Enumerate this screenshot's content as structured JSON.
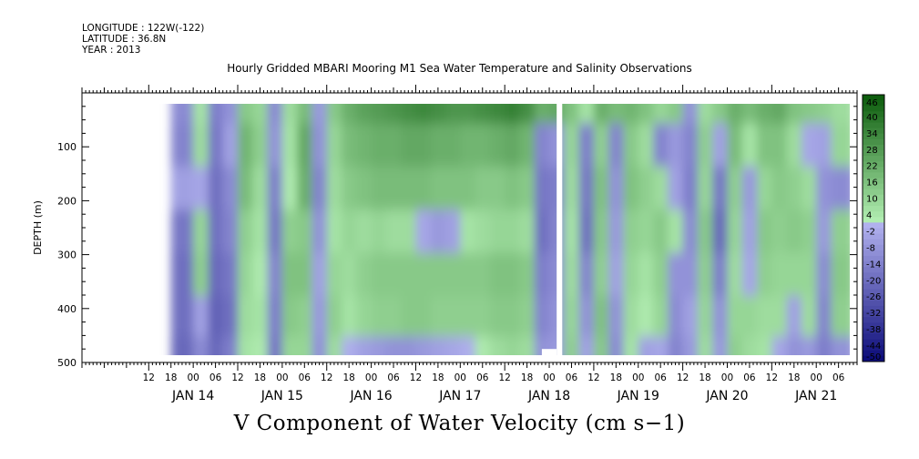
{
  "header": {
    "longitude": "LONGITUDE : 122W(-122)",
    "latitude": "LATITUDE : 36.8N",
    "year": "YEAR : 2013"
  },
  "chart_data": {
    "type": "heatmap",
    "title": "Hourly Gridded MBARI Mooring M1 Sea Water Temperature and Salinity Observations",
    "xlabel": "V Component of Water Velocity (cm s−1)",
    "ylabel": "DEPTH (m)",
    "x_range_hours": [
      0,
      186
    ],
    "x_hour_tick_labels": [
      "12",
      "18",
      "00",
      "06",
      "12",
      "18",
      "00",
      "06",
      "12",
      "18",
      "00",
      "06",
      "12",
      "18",
      "00",
      "06",
      "12",
      "18",
      "00",
      "06",
      "12",
      "18",
      "00",
      "06",
      "12",
      "18",
      "00",
      "06",
      "12",
      "18",
      "00",
      "06"
    ],
    "x_day_labels": [
      "JAN 14",
      "JAN 15",
      "JAN 16",
      "JAN 17",
      "JAN 18",
      "JAN 19",
      "JAN 20",
      "JAN 21"
    ],
    "y_ticks": [
      100,
      200,
      300,
      400,
      500
    ],
    "ylim": [
      500,
      0
    ],
    "colorbar_labels": [
      "46",
      "40",
      "34",
      "28",
      "22",
      "16",
      "10",
      "4",
      "-2",
      "-8",
      "-14",
      "-20",
      "-26",
      "-32",
      "-38",
      "-44",
      "-50"
    ],
    "colorbar_range": [
      -50,
      46
    ],
    "colormap": {
      "negative_strong": "#0a0a78",
      "negative_light": "#b4b4f0",
      "positive_light": "#b4f0b4",
      "positive_strong": "#0a5a0a"
    },
    "data_gaps": [
      {
        "hour_start": 110,
        "hour_end": 111.5,
        "depth_start": 15,
        "depth_end": 500
      },
      {
        "hour_start": 106,
        "hour_end": 110,
        "depth_start": 475,
        "depth_end": 500
      }
    ],
    "columns": [
      {
        "t": 10,
        "v": [
          -12,
          -14,
          -6,
          -18,
          -20,
          -20,
          -22
        ]
      },
      {
        "t": 14,
        "v": [
          4,
          6,
          -4,
          8,
          10,
          -6,
          -12
        ]
      },
      {
        "t": 18,
        "v": [
          -16,
          -18,
          -20,
          -20,
          -22,
          -24,
          -22
        ]
      },
      {
        "t": 22,
        "v": [
          -10,
          -6,
          -12,
          -14,
          -18,
          -20,
          -16
        ]
      },
      {
        "t": 26,
        "v": [
          12,
          18,
          16,
          10,
          8,
          6,
          4
        ]
      },
      {
        "t": 30,
        "v": [
          8,
          10,
          6,
          4,
          2,
          4,
          2
        ]
      },
      {
        "t": 34,
        "v": [
          -12,
          -10,
          -16,
          -18,
          -14,
          -16,
          -18
        ]
      },
      {
        "t": 38,
        "v": [
          6,
          4,
          2,
          10,
          14,
          12,
          8
        ]
      },
      {
        "t": 42,
        "v": [
          16,
          22,
          20,
          12,
          14,
          10,
          8
        ]
      },
      {
        "t": 46,
        "v": [
          -8,
          -10,
          -14,
          -10,
          -6,
          -8,
          -10
        ]
      },
      {
        "t": 50,
        "v": [
          12,
          8,
          6,
          4,
          8,
          10,
          6
        ]
      },
      {
        "t": 54,
        "v": [
          20,
          16,
          12,
          8,
          6,
          4,
          -2
        ]
      },
      {
        "t": 58,
        "v": [
          24,
          18,
          14,
          6,
          10,
          8,
          -6
        ]
      },
      {
        "t": 62,
        "v": [
          26,
          20,
          16,
          8,
          12,
          10,
          -8
        ]
      },
      {
        "t": 66,
        "v": [
          28,
          20,
          16,
          6,
          12,
          10,
          -10
        ]
      },
      {
        "t": 70,
        "v": [
          30,
          22,
          16,
          6,
          12,
          12,
          -10
        ]
      },
      {
        "t": 74,
        "v": [
          32,
          22,
          16,
          -4,
          12,
          12,
          -8
        ]
      },
      {
        "t": 78,
        "v": [
          30,
          20,
          14,
          -8,
          12,
          10,
          -6
        ]
      },
      {
        "t": 82,
        "v": [
          28,
          20,
          14,
          -6,
          12,
          10,
          -4
        ]
      },
      {
        "t": 86,
        "v": [
          28,
          18,
          14,
          4,
          12,
          10,
          -2
        ]
      },
      {
        "t": 90,
        "v": [
          30,
          18,
          12,
          6,
          12,
          10,
          2
        ]
      },
      {
        "t": 94,
        "v": [
          32,
          20,
          12,
          8,
          14,
          12,
          6
        ]
      },
      {
        "t": 98,
        "v": [
          34,
          22,
          14,
          8,
          14,
          12,
          8
        ]
      },
      {
        "t": 102,
        "v": [
          30,
          18,
          12,
          6,
          12,
          10,
          6
        ]
      },
      {
        "t": 106,
        "v": [
          20,
          -14,
          -18,
          -20,
          -16,
          -14,
          -10
        ]
      },
      {
        "t": 110,
        "v": [
          22,
          -10,
          -16,
          -14,
          -12,
          -10,
          -8
        ]
      },
      {
        "t": 114,
        "v": [
          14,
          8,
          6,
          4,
          6,
          8,
          10
        ]
      },
      {
        "t": 118,
        "v": [
          4,
          -16,
          -18,
          -20,
          -14,
          -10,
          -6
        ]
      },
      {
        "t": 122,
        "v": [
          20,
          10,
          14,
          12,
          10,
          14,
          12
        ]
      },
      {
        "t": 126,
        "v": [
          16,
          -14,
          -10,
          -8,
          -6,
          -10,
          -12
        ]
      },
      {
        "t": 130,
        "v": [
          18,
          12,
          14,
          10,
          8,
          6,
          4
        ]
      },
      {
        "t": 134,
        "v": [
          14,
          6,
          10,
          8,
          4,
          2,
          -6
        ]
      },
      {
        "t": 138,
        "v": [
          8,
          -14,
          6,
          12,
          10,
          8,
          -4
        ]
      },
      {
        "t": 142,
        "v": [
          12,
          -8,
          -6,
          4,
          -10,
          -12,
          -14
        ]
      },
      {
        "t": 146,
        "v": [
          -10,
          -14,
          -16,
          -12,
          -10,
          -6,
          -8
        ]
      },
      {
        "t": 150,
        "v": [
          6,
          10,
          8,
          12,
          10,
          8,
          6
        ]
      },
      {
        "t": 154,
        "v": [
          12,
          -6,
          -18,
          -22,
          -16,
          -10,
          -8
        ]
      },
      {
        "t": 158,
        "v": [
          20,
          16,
          10,
          8,
          6,
          8,
          10
        ]
      },
      {
        "t": 162,
        "v": [
          16,
          4,
          -8,
          -6,
          -4,
          8,
          6
        ]
      },
      {
        "t": 166,
        "v": [
          20,
          14,
          8,
          12,
          10,
          6,
          4
        ]
      },
      {
        "t": 170,
        "v": [
          22,
          14,
          12,
          10,
          8,
          6,
          -4
        ]
      },
      {
        "t": 174,
        "v": [
          14,
          6,
          10,
          12,
          8,
          -6,
          -10
        ]
      },
      {
        "t": 178,
        "v": [
          12,
          -4,
          6,
          10,
          8,
          6,
          -8
        ]
      },
      {
        "t": 182,
        "v": [
          10,
          -6,
          -10,
          -8,
          -12,
          -14,
          -16
        ]
      },
      {
        "t": 186,
        "v": [
          6,
          8,
          -12,
          10,
          12,
          10,
          -10
        ]
      }
    ],
    "depth_levels": [
      20,
      100,
      180,
      260,
      340,
      420,
      490
    ]
  }
}
